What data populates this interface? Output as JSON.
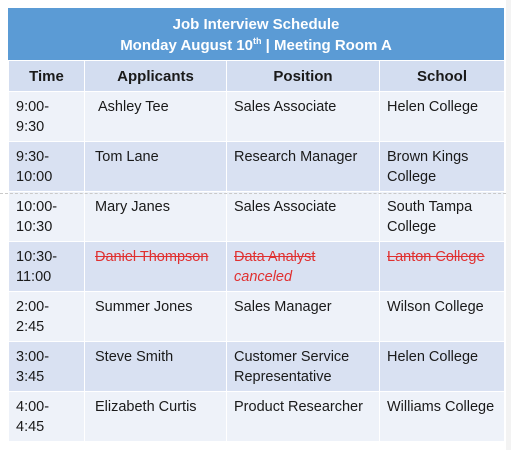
{
  "title": {
    "line1": "Job Interview Schedule",
    "date_pre": "Monday August 10",
    "date_sup": "th",
    "date_post": " | Meeting Room A"
  },
  "headers": [
    "Time",
    "Applicants",
    "Position",
    "School"
  ],
  "rows": [
    {
      "time": "9:00-\n9:30",
      "applicant": "Ashley Tee",
      "position": "Sales Associate",
      "school": "Helen College"
    },
    {
      "time": "9:30-\n10:00",
      "applicant": "Tom Lane",
      "position": "Research Manager",
      "school": "Brown Kings College"
    },
    {
      "time": "10:00-\n10:30",
      "applicant": "Mary Janes",
      "position": "Sales Associate",
      "school": "South Tampa College"
    },
    {
      "time": "10:30-\n11:00",
      "applicant": "Daniel Thompson",
      "position": "Data Analyst",
      "note": "canceled",
      "school": "Lanton College",
      "canceled": true
    },
    {
      "time": "2:00-\n2:45",
      "applicant": "Summer Jones",
      "position": "Sales Manager",
      "school": "Wilson College"
    },
    {
      "time": "3:00-\n3:45",
      "applicant": "Steve Smith",
      "position": "Customer Service Representative",
      "school": "Helen College"
    },
    {
      "time": "4:00-\n4:45",
      "applicant": "Elizabeth Curtis",
      "position": "Product Researcher",
      "school": "Williams College"
    }
  ],
  "colors": {
    "title_band": "#5b9bd5",
    "header_row": "#d3ddf0",
    "row_shade": "#d9e1f2",
    "row_plain": "#eef2f9",
    "canceled_text": "#e03030"
  }
}
